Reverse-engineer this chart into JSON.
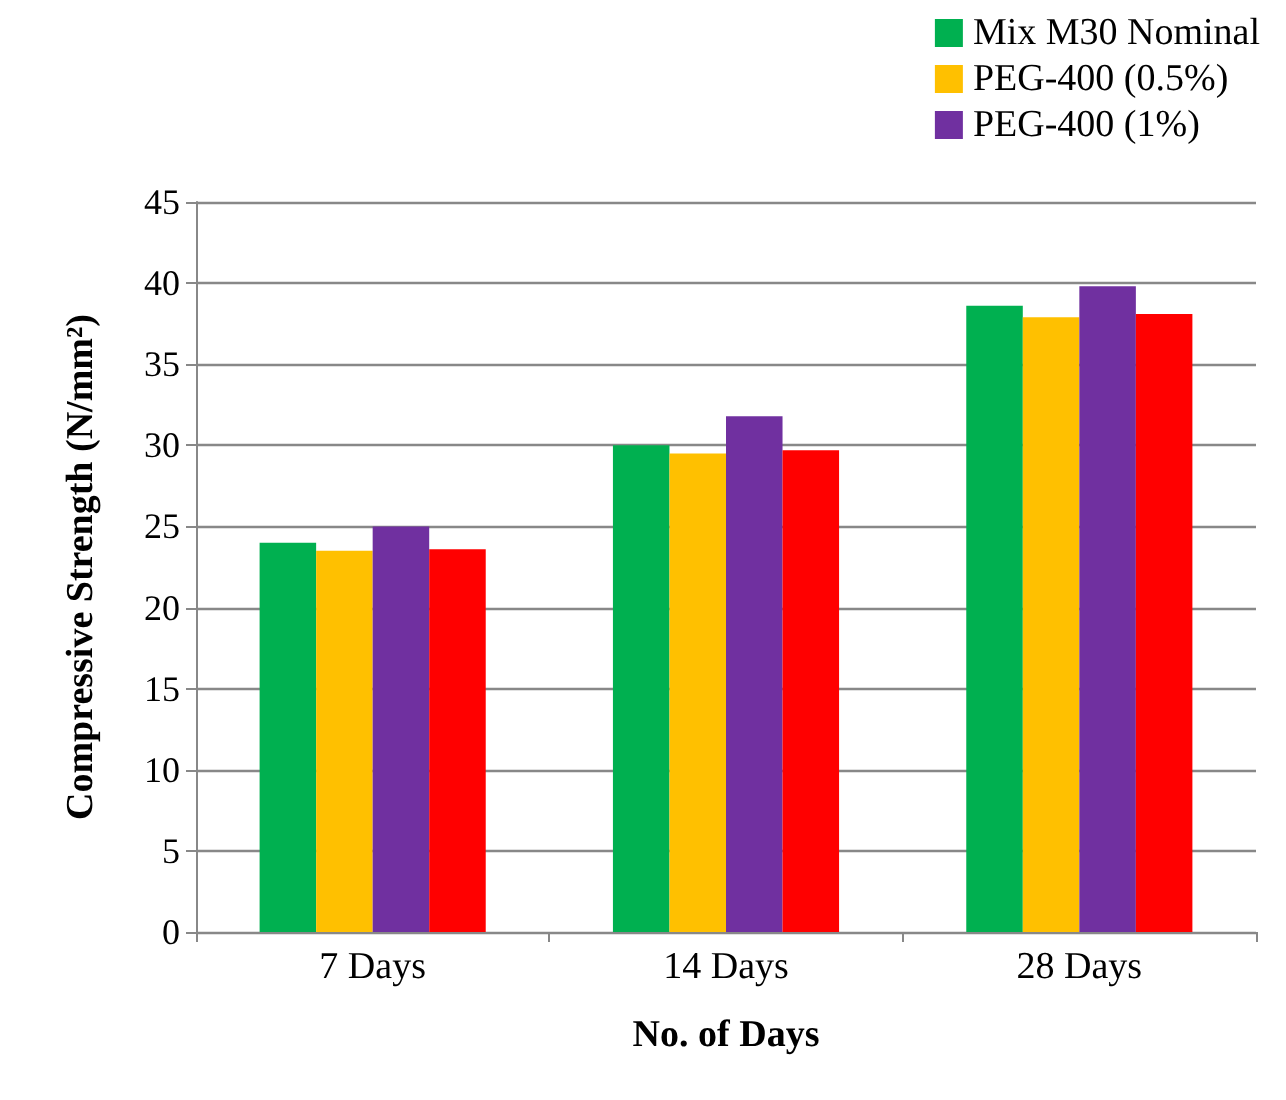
{
  "chart_data": {
    "type": "bar",
    "xlabel": "No. of Days",
    "ylabel": "Compressive Strength (N/mm²)",
    "categories": [
      "7 Days",
      "14 Days",
      "28 Days"
    ],
    "series": [
      {
        "name": "Mix M30 Nominal",
        "color": "#00b050",
        "values": [
          24,
          30,
          38.6
        ]
      },
      {
        "name": "PEG-400 (0.5%)",
        "color": "#ffc000",
        "values": [
          23.5,
          29.5,
          37.9
        ]
      },
      {
        "name": "PEG-400 (1%)",
        "color": "#7030a0",
        "values": [
          25,
          31.8,
          39.8
        ]
      },
      {
        "color": "#ff0000",
        "values": [
          23.6,
          29.7,
          38.1
        ]
      }
    ],
    "ylim": [
      0,
      45
    ],
    "yticks": [
      0,
      5,
      10,
      15,
      20,
      25,
      30,
      35,
      40,
      45
    ],
    "grid": "y",
    "legend": "top right"
  }
}
